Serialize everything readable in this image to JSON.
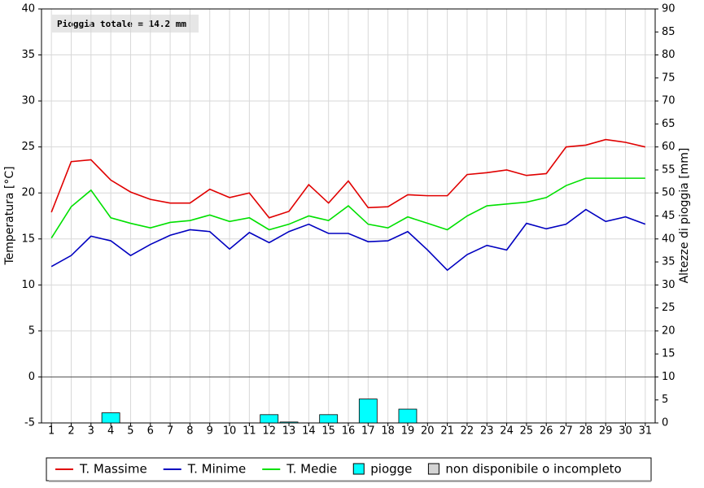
{
  "chart_data": {
    "type": "line",
    "annotation": "Pioggia totale = 14.2 mm",
    "ylabel": "Temperatura [°C]",
    "y2label": "Altezze di pioggia [mm]",
    "x": [
      1,
      2,
      3,
      4,
      5,
      6,
      7,
      8,
      9,
      10,
      11,
      12,
      13,
      14,
      15,
      16,
      17,
      18,
      19,
      20,
      21,
      22,
      23,
      24,
      25,
      26,
      27,
      28,
      29,
      30,
      31
    ],
    "xlim": [
      0.5,
      31.5
    ],
    "xticks": [
      1,
      2,
      3,
      4,
      5,
      6,
      7,
      8,
      9,
      10,
      11,
      12,
      13,
      14,
      15,
      16,
      17,
      18,
      19,
      20,
      21,
      22,
      23,
      24,
      25,
      26,
      27,
      28,
      29,
      30,
      31
    ],
    "ylim": [
      -5,
      40
    ],
    "yticks": [
      -5,
      0,
      5,
      10,
      15,
      20,
      25,
      30,
      35,
      40
    ],
    "y2lim": [
      0,
      90
    ],
    "y2ticks": [
      0,
      5,
      10,
      15,
      20,
      25,
      30,
      35,
      40,
      45,
      50,
      55,
      60,
      65,
      70,
      75,
      80,
      85,
      90
    ],
    "grid": true,
    "legend": "bottom",
    "series": [
      {
        "name": "T. Massime",
        "color": "#e00000",
        "values": [
          17.9,
          23.4,
          23.6,
          21.4,
          20.1,
          19.3,
          18.9,
          18.9,
          20.4,
          19.5,
          20.0,
          17.3,
          18.0,
          20.9,
          18.9,
          21.3,
          18.4,
          18.5,
          19.8,
          19.7,
          19.7,
          22.0,
          22.2,
          22.5,
          21.9,
          22.1,
          25.0,
          25.2,
          25.8,
          25.5,
          25.0
        ]
      },
      {
        "name": "T. Minime",
        "color": "#0000c0",
        "values": [
          12.0,
          13.2,
          15.3,
          14.8,
          13.2,
          14.4,
          15.4,
          16.0,
          15.8,
          13.9,
          15.7,
          14.6,
          15.8,
          16.6,
          15.6,
          15.6,
          14.7,
          14.8,
          15.8,
          13.8,
          11.6,
          13.3,
          14.3,
          13.8,
          16.7,
          16.1,
          16.6,
          18.2,
          16.9,
          17.4,
          16.6
        ]
      },
      {
        "name": "T. Medie",
        "color": "#00e000",
        "values": [
          15.1,
          18.5,
          20.3,
          17.3,
          16.7,
          16.2,
          16.8,
          17.0,
          17.6,
          16.9,
          17.3,
          16.0,
          16.6,
          17.5,
          17.0,
          18.6,
          16.6,
          16.2,
          17.4,
          16.7,
          16.0,
          17.5,
          18.6,
          18.8,
          19.0,
          19.5,
          20.8,
          21.6,
          21.6,
          21.6,
          21.6
        ]
      },
      {
        "name": "piogge",
        "type": "bar",
        "axis": "y2",
        "color": "#00ffff",
        "values": [
          0,
          0,
          0,
          2.2,
          0,
          0,
          0,
          0,
          0,
          0,
          0,
          1.8,
          0.2,
          0,
          1.8,
          0,
          5.2,
          0,
          3.0,
          0,
          0,
          0,
          0,
          0,
          0,
          0,
          0,
          0,
          0,
          0,
          0
        ]
      }
    ],
    "legend_extra": [
      {
        "name": "non disponibile o incompleto",
        "color": "#d4d4d4"
      }
    ]
  }
}
